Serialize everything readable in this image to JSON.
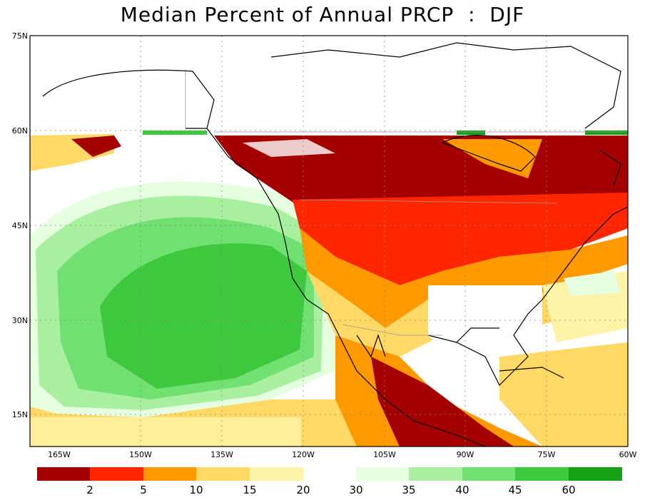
{
  "title": "Median Percent of Annual PRCP  :  DJF",
  "map": {
    "lat_ticks": [
      "75N",
      "60N",
      "45N",
      "30N",
      "15N"
    ],
    "lon_ticks": [
      "165W",
      "150W",
      "135W",
      "120W",
      "105W",
      "90W",
      "75W",
      "60W"
    ]
  },
  "legend": {
    "labels": [
      "2",
      "5",
      "10",
      "15",
      "20",
      "30",
      "35",
      "40",
      "45",
      "60"
    ],
    "colors": [
      "#a50000",
      "#ff2600",
      "#ff9900",
      "#ffd966",
      "#fff3a8",
      "#e6ffe0",
      "#a8f0a0",
      "#70e070",
      "#3ec83e",
      "#16a016"
    ]
  }
}
